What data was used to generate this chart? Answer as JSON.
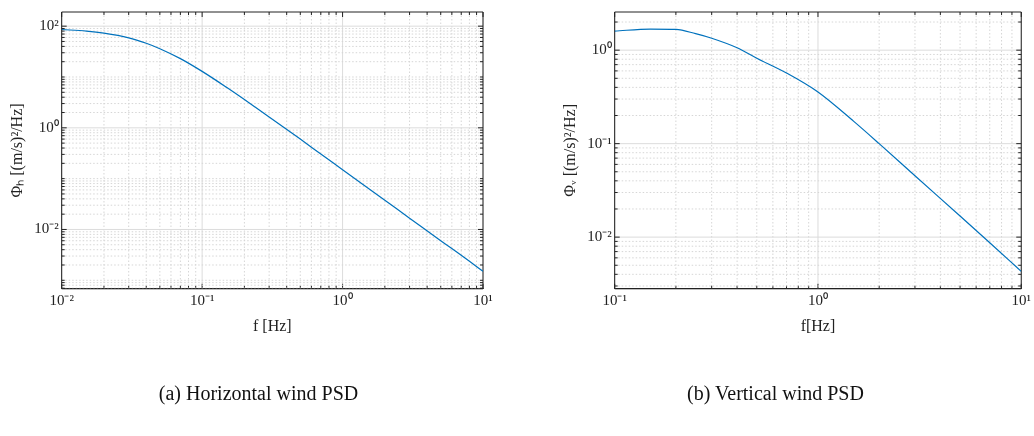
{
  "chart_data": [
    {
      "type": "line",
      "title": "(a) Horizontal wind PSD",
      "xlabel": "f [Hz]",
      "ylabel": "Φₕ [(m/s)²/Hz]",
      "log": "xy",
      "grid": true,
      "legend": false,
      "marker": "none",
      "line_style": "solid",
      "x": [
        0.01,
        0.015,
        0.02,
        0.03,
        0.04,
        0.05,
        0.07,
        0.1,
        0.15,
        0.2,
        0.3,
        0.5,
        0.7,
        1,
        2,
        3,
        5,
        7,
        10
      ],
      "series": [
        {
          "color": "#0072bd",
          "values": [
            86,
            80,
            73,
            59,
            46,
            36,
            23,
            12.9,
            6.2,
            3.6,
            1.64,
            0.6,
            0.305,
            0.15,
            0.0375,
            0.0167,
            0.006,
            0.0031,
            0.0015
          ]
        }
      ],
      "xlim": [
        0.01,
        10
      ],
      "ylim": [
        0.00068,
        190
      ],
      "xticks": [
        {
          "value": 0.01,
          "label": "10⁻²"
        },
        {
          "value": 0.02,
          "label": null
        },
        {
          "value": 0.03,
          "label": null
        },
        {
          "value": 0.04,
          "label": null
        },
        {
          "value": 0.05,
          "label": null
        },
        {
          "value": 0.06,
          "label": null
        },
        {
          "value": 0.07,
          "label": null
        },
        {
          "value": 0.08,
          "label": null
        },
        {
          "value": 0.09,
          "label": null
        },
        {
          "value": 0.1,
          "label": "10⁻¹"
        },
        {
          "value": 0.2,
          "label": null
        },
        {
          "value": 0.3,
          "label": null
        },
        {
          "value": 0.4,
          "label": null
        },
        {
          "value": 0.5,
          "label": null
        },
        {
          "value": 0.6,
          "label": null
        },
        {
          "value": 0.7,
          "label": null
        },
        {
          "value": 0.8,
          "label": null
        },
        {
          "value": 0.9,
          "label": null
        },
        {
          "value": 1,
          "label": "10⁰"
        },
        {
          "value": 2,
          "label": null
        },
        {
          "value": 3,
          "label": null
        },
        {
          "value": 4,
          "label": null
        },
        {
          "value": 5,
          "label": null
        },
        {
          "value": 6,
          "label": null
        },
        {
          "value": 7,
          "label": null
        },
        {
          "value": 8,
          "label": null
        },
        {
          "value": 9,
          "label": null
        },
        {
          "value": 10,
          "label": "10¹"
        }
      ],
      "yticks": [
        {
          "value": 0.0007,
          "label": null
        },
        {
          "value": 0.0008,
          "label": null
        },
        {
          "value": 0.0009,
          "label": null
        },
        {
          "value": 0.001,
          "label": null
        },
        {
          "value": 0.002,
          "label": null
        },
        {
          "value": 0.003,
          "label": null
        },
        {
          "value": 0.004,
          "label": null
        },
        {
          "value": 0.005,
          "label": null
        },
        {
          "value": 0.006,
          "label": null
        },
        {
          "value": 0.007,
          "label": null
        },
        {
          "value": 0.008,
          "label": null
        },
        {
          "value": 0.009,
          "label": null
        },
        {
          "value": 0.01,
          "label": "10⁻²"
        },
        {
          "value": 0.02,
          "label": null
        },
        {
          "value": 0.03,
          "label": null
        },
        {
          "value": 0.04,
          "label": null
        },
        {
          "value": 0.05,
          "label": null
        },
        {
          "value": 0.06,
          "label": null
        },
        {
          "value": 0.07,
          "label": null
        },
        {
          "value": 0.08,
          "label": null
        },
        {
          "value": 0.09,
          "label": null
        },
        {
          "value": 0.1,
          "label": null
        },
        {
          "value": 0.2,
          "label": null
        },
        {
          "value": 0.3,
          "label": null
        },
        {
          "value": 0.4,
          "label": null
        },
        {
          "value": 0.5,
          "label": null
        },
        {
          "value": 0.6,
          "label": null
        },
        {
          "value": 0.7,
          "label": null
        },
        {
          "value": 0.8,
          "label": null
        },
        {
          "value": 0.9,
          "label": null
        },
        {
          "value": 1,
          "label": "10⁰"
        },
        {
          "value": 2,
          "label": null
        },
        {
          "value": 3,
          "label": null
        },
        {
          "value": 4,
          "label": null
        },
        {
          "value": 5,
          "label": null
        },
        {
          "value": 6,
          "label": null
        },
        {
          "value": 7,
          "label": null
        },
        {
          "value": 8,
          "label": null
        },
        {
          "value": 9,
          "label": null
        },
        {
          "value": 10,
          "label": null
        },
        {
          "value": 20,
          "label": null
        },
        {
          "value": 30,
          "label": null
        },
        {
          "value": 40,
          "label": null
        },
        {
          "value": 50,
          "label": null
        },
        {
          "value": 60,
          "label": null
        },
        {
          "value": 70,
          "label": null
        },
        {
          "value": 80,
          "label": null
        },
        {
          "value": 90,
          "label": null
        },
        {
          "value": 100,
          "label": "10²"
        }
      ]
    },
    {
      "type": "line",
      "title": "(b) Vertical wind PSD",
      "xlabel": "f[Hz]",
      "ylabel": "Φᵥ [(m/s)²/Hz]",
      "log": "xy",
      "grid": true,
      "legend": false,
      "marker": "none",
      "line_style": "solid",
      "x": [
        0.1,
        0.15,
        0.2,
        0.25,
        0.3,
        0.4,
        0.5,
        0.7,
        1,
        1.5,
        2,
        3,
        5,
        7,
        10
      ],
      "series": [
        {
          "color": "#0072bd",
          "values": [
            1.6,
            1.68,
            1.67,
            1.5,
            1.34,
            1.06,
            0.82,
            0.57,
            0.357,
            0.173,
            0.1,
            0.0453,
            0.0168,
            0.0087,
            0.0043
          ]
        }
      ],
      "xlim": [
        0.1,
        10
      ],
      "ylim": [
        0.0028,
        2.56
      ],
      "xticks": [
        {
          "value": 0.1,
          "label": "10⁻¹"
        },
        {
          "value": 0.2,
          "label": null
        },
        {
          "value": 0.3,
          "label": null
        },
        {
          "value": 0.4,
          "label": null
        },
        {
          "value": 0.5,
          "label": null
        },
        {
          "value": 0.6,
          "label": null
        },
        {
          "value": 0.7,
          "label": null
        },
        {
          "value": 0.8,
          "label": null
        },
        {
          "value": 0.9,
          "label": null
        },
        {
          "value": 1,
          "label": "10⁰"
        },
        {
          "value": 2,
          "label": null
        },
        {
          "value": 3,
          "label": null
        },
        {
          "value": 4,
          "label": null
        },
        {
          "value": 5,
          "label": null
        },
        {
          "value": 6,
          "label": null
        },
        {
          "value": 7,
          "label": null
        },
        {
          "value": 8,
          "label": null
        },
        {
          "value": 9,
          "label": null
        },
        {
          "value": 10,
          "label": "10¹"
        }
      ],
      "yticks": [
        {
          "value": 0.003,
          "label": null
        },
        {
          "value": 0.004,
          "label": null
        },
        {
          "value": 0.005,
          "label": null
        },
        {
          "value": 0.006,
          "label": null
        },
        {
          "value": 0.007,
          "label": null
        },
        {
          "value": 0.008,
          "label": null
        },
        {
          "value": 0.009,
          "label": null
        },
        {
          "value": 0.01,
          "label": "10⁻²"
        },
        {
          "value": 0.02,
          "label": null
        },
        {
          "value": 0.03,
          "label": null
        },
        {
          "value": 0.04,
          "label": null
        },
        {
          "value": 0.05,
          "label": null
        },
        {
          "value": 0.06,
          "label": null
        },
        {
          "value": 0.07,
          "label": null
        },
        {
          "value": 0.08,
          "label": null
        },
        {
          "value": 0.09,
          "label": null
        },
        {
          "value": 0.1,
          "label": "10⁻¹"
        },
        {
          "value": 0.2,
          "label": null
        },
        {
          "value": 0.3,
          "label": null
        },
        {
          "value": 0.4,
          "label": null
        },
        {
          "value": 0.5,
          "label": null
        },
        {
          "value": 0.6,
          "label": null
        },
        {
          "value": 0.7,
          "label": null
        },
        {
          "value": 0.8,
          "label": null
        },
        {
          "value": 0.9,
          "label": null
        },
        {
          "value": 1,
          "label": "10⁰"
        },
        {
          "value": 2,
          "label": null
        }
      ]
    }
  ]
}
